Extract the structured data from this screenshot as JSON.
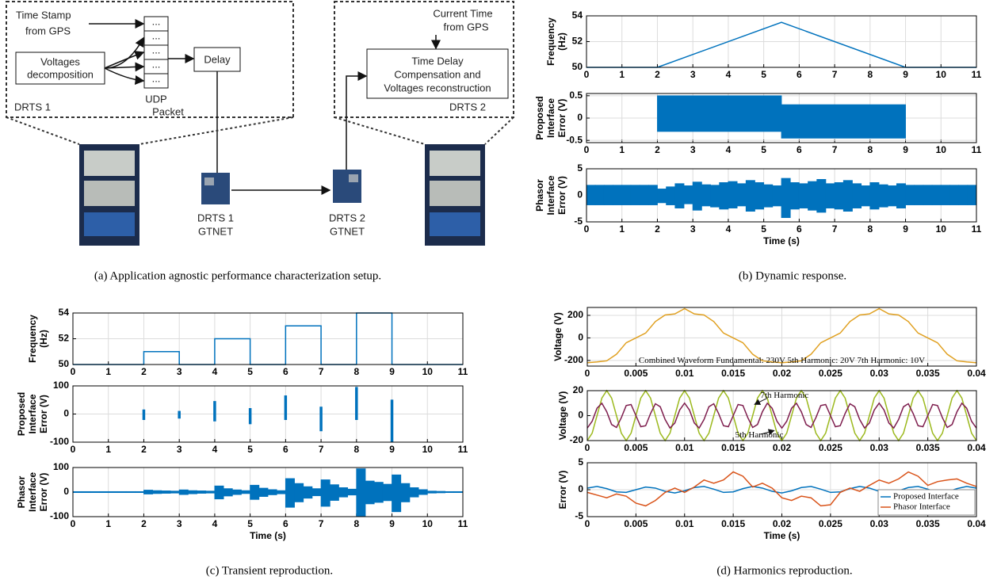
{
  "diagram": {
    "left_box": {
      "label": "DRTS 1",
      "gps_input": [
        "Time Stamp",
        "from GPS"
      ],
      "decomposition": [
        "Voltages",
        "decomposition"
      ],
      "packet_cells": [
        "...",
        "...",
        "...",
        "...",
        "..."
      ],
      "packet_label": [
        "UDP",
        "Packet"
      ],
      "delay": "Delay"
    },
    "right_box": {
      "label": "DRTS 2",
      "gps_input": [
        "Current Time",
        "from GPS"
      ],
      "process": [
        "Time Delay",
        "Compensation and",
        "Voltages reconstruction"
      ]
    },
    "cards": [
      [
        "DRTS 1",
        "GTNET"
      ],
      [
        "DRTS 2",
        "GTNET"
      ]
    ]
  },
  "captions": [
    "(a) Application agnostic performance characterization setup.",
    "(b) Dynamic response.",
    "(c) Transient reproduction.",
    "(d) Harmonics reproduction."
  ],
  "chart_data": [
    {
      "type": "line",
      "ylabel": [
        "Frequency",
        "(Hz)"
      ],
      "x": [
        0,
        2,
        5.5,
        9,
        11
      ],
      "series": [
        {
          "color": "#0072bd",
          "values": [
            50,
            50,
            53.5,
            50,
            50
          ]
        }
      ],
      "xlim": [
        0,
        11
      ],
      "ylim": [
        50,
        54
      ],
      "xticks": [
        0,
        1,
        2,
        3,
        4,
        5,
        6,
        7,
        8,
        9,
        10,
        11
      ],
      "yticks": [
        50,
        52,
        54
      ],
      "grid": true
    },
    {
      "type": "band",
      "ylabel": [
        "Proposed",
        "Interface",
        "Error (V)"
      ],
      "color": "#0072bd",
      "bins": [
        0,
        2,
        5.5,
        9,
        11
      ],
      "lower": [
        0,
        -0.3,
        -0.45,
        0
      ],
      "upper": [
        0,
        0.5,
        0.3,
        0
      ],
      "xlim": [
        0,
        11
      ],
      "ylim": [
        -0.55,
        0.55
      ],
      "xticks": [
        0,
        1,
        2,
        3,
        4,
        5,
        6,
        7,
        8,
        9,
        10,
        11
      ],
      "yticks": [
        -0.5,
        0,
        0.5
      ],
      "grid": true
    },
    {
      "type": "band",
      "ylabel": [
        "Phasor",
        "Interface",
        "Error (V)"
      ],
      "xlabel": "Time (s)",
      "color": "#0072bd",
      "bins": [
        0,
        0.25,
        0.5,
        0.75,
        1,
        1.25,
        1.5,
        1.75,
        2,
        2.25,
        2.5,
        2.75,
        3,
        3.25,
        3.5,
        3.75,
        4,
        4.25,
        4.5,
        4.75,
        5,
        5.25,
        5.5,
        5.75,
        6,
        6.25,
        6.5,
        6.75,
        7,
        7.25,
        7.5,
        7.75,
        8,
        8.25,
        8.5,
        8.75,
        9,
        9.25,
        9.5,
        9.75,
        10,
        10.25,
        10.5,
        10.75,
        11
      ],
      "lower": [
        -1.8,
        -1.8,
        -1.8,
        -1.8,
        -1.8,
        -1.8,
        -1.8,
        -1.8,
        -1.4,
        -1.8,
        -2.4,
        -1.6,
        -2.8,
        -2.0,
        -2.2,
        -2.6,
        -2.4,
        -2.0,
        -3.0,
        -2.6,
        -2.2,
        -2.0,
        -4.2,
        -2.6,
        -2.4,
        -2.8,
        -3.2,
        -2.4,
        -2.6,
        -3.0,
        -2.4,
        -2.0,
        -2.6,
        -2.2,
        -2.0,
        -2.4,
        -1.8,
        -1.8,
        -1.8,
        -1.8,
        -1.8,
        -1.8,
        -1.8,
        -1.8
      ],
      "upper": [
        1.9,
        1.9,
        1.9,
        1.9,
        1.9,
        1.9,
        1.9,
        1.9,
        1.2,
        1.6,
        2.2,
        1.8,
        2.5,
        2.0,
        1.9,
        2.4,
        2.6,
        2.2,
        2.8,
        2.4,
        2.0,
        1.8,
        3.2,
        2.4,
        2.2,
        2.6,
        3.0,
        2.2,
        2.4,
        2.8,
        2.2,
        1.8,
        2.4,
        2.0,
        1.8,
        2.2,
        1.9,
        1.9,
        1.9,
        1.9,
        1.9,
        1.9,
        1.9,
        1.9
      ],
      "xlim": [
        0,
        11
      ],
      "ylim": [
        -5,
        5
      ],
      "xticks": [
        0,
        1,
        2,
        3,
        4,
        5,
        6,
        7,
        8,
        9,
        10,
        11
      ],
      "yticks": [
        -5,
        0,
        5
      ],
      "grid": true
    },
    {
      "type": "line",
      "ylabel": [
        "Frequency",
        "(Hz)"
      ],
      "x": [
        0,
        2,
        2,
        3,
        3,
        4,
        4,
        5,
        5,
        6,
        6,
        7,
        7,
        8,
        8,
        9,
        9,
        11
      ],
      "series": [
        {
          "color": "#0072bd",
          "values": [
            50,
            50,
            51,
            51,
            50,
            50,
            52,
            52,
            50,
            50,
            53,
            53,
            50,
            50,
            54,
            54,
            50,
            50
          ]
        }
      ],
      "xlim": [
        0,
        11
      ],
      "ylim": [
        50,
        54
      ],
      "xticks": [
        0,
        1,
        2,
        3,
        4,
        5,
        6,
        7,
        8,
        9,
        10,
        11
      ],
      "yticks": [
        50,
        52,
        54
      ],
      "grid": true
    },
    {
      "type": "band",
      "ylabel": [
        "Proposed",
        "Interface",
        "Error (V)"
      ],
      "color": "#0072bd",
      "bins": [
        0,
        1.97,
        2.03,
        2.97,
        3.03,
        3.97,
        4.03,
        4.97,
        5.03,
        5.97,
        6.03,
        6.97,
        7.03,
        7.97,
        8.03,
        8.97,
        9.03,
        11
      ],
      "lower": [
        0,
        -20,
        0,
        -15,
        0,
        -25,
        0,
        -35,
        0,
        -20,
        0,
        -60,
        0,
        -20,
        0,
        -100,
        0
      ],
      "upper": [
        0,
        15,
        0,
        10,
        0,
        45,
        0,
        20,
        0,
        65,
        0,
        25,
        0,
        95,
        0,
        50,
        0
      ],
      "xlim": [
        0,
        11
      ],
      "ylim": [
        -100,
        100
      ],
      "xticks": [
        0,
        1,
        2,
        3,
        4,
        5,
        6,
        7,
        8,
        9,
        10,
        11
      ],
      "yticks": [
        -100,
        0,
        100
      ],
      "grid": true
    },
    {
      "type": "band",
      "ylabel": [
        "Phasor",
        "Interface",
        "Error (V)"
      ],
      "xlabel": "Time (s)",
      "color": "#0072bd",
      "bins": [
        0,
        0.25,
        0.5,
        0.75,
        1,
        1.25,
        1.5,
        1.75,
        2,
        2.25,
        2.5,
        2.75,
        3,
        3.25,
        3.5,
        3.75,
        4,
        4.25,
        4.5,
        4.75,
        5,
        5.25,
        5.5,
        5.75,
        6,
        6.25,
        6.5,
        6.75,
        7,
        7.25,
        7.5,
        7.75,
        8,
        8.25,
        8.5,
        8.75,
        9,
        9.25,
        9.5,
        9.75,
        10,
        10.25,
        10.5,
        10.75,
        11
      ],
      "lower": [
        -2,
        -2,
        -2,
        -2,
        -2,
        -2,
        -2,
        -2,
        -8,
        -6,
        -5,
        -4,
        -10,
        -7,
        -5,
        -4,
        -28,
        -16,
        -10,
        -6,
        -30,
        -18,
        -11,
        -7,
        -62,
        -40,
        -25,
        -15,
        -58,
        -34,
        -20,
        -12,
        -100,
        -48,
        -42,
        -35,
        -80,
        -40,
        -20,
        -10,
        -4,
        -3,
        -2,
        -2
      ],
      "upper": [
        2,
        2,
        2,
        2,
        2,
        2,
        2,
        2,
        8,
        6,
        5,
        4,
        9,
        6,
        5,
        4,
        25,
        14,
        9,
        6,
        28,
        16,
        10,
        6,
        55,
        35,
        22,
        14,
        50,
        30,
        18,
        12,
        95,
        45,
        40,
        32,
        70,
        35,
        18,
        10,
        4,
        3,
        2,
        2
      ],
      "xlim": [
        0,
        11
      ],
      "ylim": [
        -100,
        100
      ],
      "xticks": [
        0,
        1,
        2,
        3,
        4,
        5,
        6,
        7,
        8,
        9,
        10,
        11
      ],
      "yticks": [
        -100,
        0,
        100
      ],
      "grid": true
    },
    {
      "type": "line",
      "ylabel": [
        "Voltage (V)"
      ],
      "annotations": [
        "Combined Waveform Fundamental: 230V 5th Harmonic: 20V 7th Harmonic: 10V"
      ],
      "x": [
        0,
        0.001,
        0.002,
        0.003,
        0.004,
        0.005,
        0.006,
        0.007,
        0.008,
        0.009,
        0.01,
        0.011,
        0.012,
        0.013,
        0.014,
        0.015,
        0.016,
        0.017,
        0.018,
        0.019,
        0.02,
        0.021,
        0.022,
        0.023,
        0.024,
        0.025,
        0.026,
        0.027,
        0.028,
        0.029,
        0.03,
        0.031,
        0.032,
        0.033,
        0.034,
        0.035,
        0.036,
        0.037,
        0.038,
        0.039,
        0.04
      ],
      "series": [
        {
          "color": "#e0a020",
          "values": [
            -220,
            -213,
            -203,
            -145,
            -43,
            0,
            43,
            145,
            203,
            213,
            260,
            213,
            203,
            145,
            43,
            0,
            -43,
            -145,
            -203,
            -213,
            -220,
            -213,
            -203,
            -145,
            -43,
            0,
            43,
            145,
            203,
            213,
            260,
            213,
            203,
            145,
            43,
            0,
            -43,
            -145,
            -203,
            -213,
            -220
          ]
        }
      ],
      "xlim": [
        0,
        0.04
      ],
      "ylim": [
        -250,
        270
      ],
      "xticks": [
        0,
        0.005,
        0.01,
        0.015,
        0.02,
        0.025,
        0.03,
        0.035,
        0.04
      ],
      "yticks": [
        -200,
        0,
        200
      ],
      "grid": true
    },
    {
      "type": "line",
      "ylabel": [
        "Voltage (V)"
      ],
      "annotations": [
        "7th Harmonic",
        "5th Harmonic"
      ],
      "x": [
        0,
        0.0005,
        0.001,
        0.0015,
        0.002,
        0.0025,
        0.003,
        0.0035,
        0.004,
        0.0045,
        0.005,
        0.0055,
        0.006,
        0.0065,
        0.007,
        0.0075,
        0.008,
        0.0085,
        0.009,
        0.0095,
        0.01,
        0.0105,
        0.011,
        0.0115,
        0.012,
        0.0125,
        0.013,
        0.0135,
        0.014,
        0.0145,
        0.015,
        0.0155,
        0.016,
        0.0165,
        0.017,
        0.0175,
        0.018,
        0.0185,
        0.019,
        0.0195,
        0.02,
        0.0205,
        0.021,
        0.0215,
        0.022,
        0.0225,
        0.023,
        0.0235,
        0.024,
        0.0245,
        0.025,
        0.0255,
        0.026,
        0.0265,
        0.027,
        0.0275,
        0.028,
        0.0285,
        0.029,
        0.0295,
        0.03,
        0.0305,
        0.031,
        0.0315,
        0.032,
        0.0325,
        0.033,
        0.0335,
        0.034,
        0.0345,
        0.035,
        0.0355,
        0.036,
        0.0365,
        0.037,
        0.0375,
        0.038,
        0.0385,
        0.039,
        0.0395,
        0.04
      ],
      "series": [
        {
          "color": "#9cb91e",
          "values": [
            -20,
            -14.1,
            0,
            14.1,
            20,
            14.1,
            0,
            -14.1,
            -20,
            -14.1,
            0,
            14.1,
            20,
            14.1,
            0,
            -14.1,
            -20,
            -14.1,
            0,
            14.1,
            20,
            14.1,
            0,
            -14.1,
            -20,
            -14.1,
            0,
            14.1,
            20,
            14.1,
            0,
            -14.1,
            -20,
            -14.1,
            0,
            14.1,
            20,
            14.1,
            0,
            -14.1,
            -20,
            -14.1,
            0,
            14.1,
            20,
            14.1,
            0,
            -14.1,
            -20,
            -14.1,
            0,
            14.1,
            20,
            14.1,
            0,
            -14.1,
            -20,
            -14.1,
            0,
            14.1,
            20,
            14.1,
            0,
            -14.1,
            -20,
            -14.1,
            0,
            14.1,
            20,
            14.1,
            0,
            -14.1,
            -20,
            -14.1,
            0,
            14.1,
            20,
            14.1,
            0,
            -14.1,
            -20
          ]
        },
        {
          "color": "#7e1e4e",
          "values": [
            -10,
            -4.5,
            5.9,
            9.9,
            3.1,
            -7.1,
            -9.5,
            -1.6,
            8.1,
            8.9,
            0,
            -8.9,
            -8.1,
            1.6,
            9.5,
            7.1,
            -3.1,
            -9.9,
            -5.9,
            4.5,
            10,
            4.5,
            -5.9,
            -9.9,
            -3.1,
            7.1,
            9.5,
            1.6,
            -8.1,
            -8.9,
            0,
            8.9,
            8.1,
            -1.6,
            -9.5,
            -7.1,
            3.1,
            9.9,
            5.9,
            -4.5,
            -10,
            -4.5,
            5.9,
            9.9,
            3.1,
            -7.1,
            -9.5,
            -1.6,
            8.1,
            8.9,
            0,
            -8.9,
            -8.1,
            1.6,
            9.5,
            7.1,
            -3.1,
            -9.9,
            -5.9,
            4.5,
            10,
            4.5,
            -5.9,
            -9.9,
            -3.1,
            7.1,
            9.5,
            1.6,
            -8.1,
            -8.9,
            0,
            8.9,
            8.1,
            -1.6,
            -9.5,
            -7.1,
            3.1,
            9.9,
            5.9,
            -4.5,
            -10
          ]
        }
      ],
      "xlim": [
        0,
        0.04
      ],
      "ylim": [
        -20,
        20
      ],
      "xticks": [
        0,
        0.005,
        0.01,
        0.015,
        0.02,
        0.025,
        0.03,
        0.035,
        0.04
      ],
      "yticks": [
        -20,
        0,
        20
      ],
      "grid": true
    },
    {
      "type": "line",
      "ylabel": [
        "Error (V)"
      ],
      "xlabel": "Time (s)",
      "legend": "lower right",
      "x": [
        0,
        0.001,
        0.002,
        0.003,
        0.004,
        0.005,
        0.006,
        0.007,
        0.008,
        0.009,
        0.01,
        0.011,
        0.012,
        0.013,
        0.014,
        0.015,
        0.016,
        0.017,
        0.018,
        0.019,
        0.02,
        0.021,
        0.022,
        0.023,
        0.024,
        0.025,
        0.026,
        0.027,
        0.028,
        0.029,
        0.03,
        0.031,
        0.032,
        0.033,
        0.034,
        0.035,
        0.036,
        0.037,
        0.038,
        0.039,
        0.04
      ],
      "series": [
        {
          "name": "Proposed Interface",
          "color": "#0072bd",
          "values": [
            0.3,
            0.6,
            0.2,
            -0.4,
            -0.5,
            0,
            0.5,
            0.3,
            -0.3,
            -0.6,
            -0.2,
            0.4,
            0.6,
            0.1,
            -0.5,
            -0.4,
            0.2,
            0.6,
            0.3,
            -0.3,
            -0.6,
            -0.2,
            0.4,
            0.6,
            0.1,
            -0.5,
            -0.4,
            0.2,
            0.6,
            0.3,
            -0.3,
            -0.6,
            -0.2,
            0.4,
            0.6,
            0.1,
            -0.5,
            -0.4,
            0.2,
            0.6,
            0.3
          ]
        },
        {
          "name": "Phasor Interface",
          "color": "#d95319",
          "values": [
            -0.5,
            -1,
            -1.5,
            -0.8,
            -1.2,
            -2.5,
            -3,
            -2,
            -0.5,
            0.3,
            -0.5,
            0.5,
            1.8,
            1.2,
            1.8,
            3.3,
            2.5,
            0.5,
            1.2,
            0.3,
            -1.5,
            -2,
            -1.2,
            -1.5,
            -3,
            -2.8,
            -0.5,
            0.3,
            -0.3,
            0.8,
            1.8,
            1.2,
            2,
            3.3,
            2.5,
            0.8,
            1.5,
            1.8,
            2,
            1.2,
            0.6
          ]
        }
      ],
      "xlim": [
        0,
        0.04
      ],
      "ylim": [
        -5,
        5
      ],
      "xticks": [
        0,
        0.005,
        0.01,
        0.015,
        0.02,
        0.025,
        0.03,
        0.035,
        0.04
      ],
      "yticks": [
        -5,
        0,
        5
      ],
      "grid": true
    }
  ]
}
